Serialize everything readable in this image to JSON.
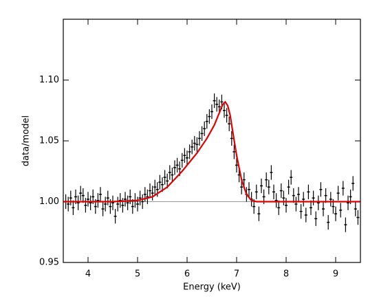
{
  "chart_data": {
    "type": "scatter",
    "xlabel": "Energy (keV)",
    "ylabel": "data/model",
    "xlim": [
      3.5,
      9.5
    ],
    "ylim": [
      0.95,
      1.15
    ],
    "xticks": [
      4,
      5,
      6,
      7,
      8,
      9
    ],
    "yticks": [
      0.95,
      {
        "value": 1,
        "label": "1.00"
      },
      1.05,
      {
        "value": 1.1,
        "label": "1.10"
      }
    ],
    "reference_y": 1,
    "series": [
      {
        "type": "errorbar",
        "color": "#000000",
        "error": 0.006,
        "x": [
          3.55,
          3.6,
          3.65,
          3.7,
          3.75,
          3.8,
          3.85,
          3.9,
          3.95,
          4.0,
          4.05,
          4.1,
          4.15,
          4.2,
          4.25,
          4.3,
          4.35,
          4.4,
          4.45,
          4.5,
          4.55,
          4.6,
          4.65,
          4.7,
          4.75,
          4.8,
          4.85,
          4.9,
          4.95,
          5.0,
          5.05,
          5.1,
          5.15,
          5.2,
          5.25,
          5.3,
          5.35,
          5.4,
          5.45,
          5.5,
          5.55,
          5.6,
          5.65,
          5.7,
          5.75,
          5.8,
          5.85,
          5.9,
          5.95,
          6.0,
          6.05,
          6.1,
          6.15,
          6.2,
          6.25,
          6.3,
          6.35,
          6.4,
          6.45,
          6.5,
          6.55,
          6.6,
          6.65,
          6.7,
          6.75,
          6.8,
          6.85,
          6.9,
          6.95,
          7.0,
          7.05,
          7.1,
          7.15,
          7.2,
          7.25,
          7.3,
          7.35,
          7.4,
          7.45,
          7.5,
          7.55,
          7.6,
          7.65,
          7.7,
          7.75,
          7.8,
          7.85,
          7.9,
          7.95,
          8.0,
          8.05,
          8.1,
          8.15,
          8.2,
          8.25,
          8.3,
          8.35,
          8.4,
          8.45,
          8.5,
          8.55,
          8.6,
          8.65,
          8.7,
          8.75,
          8.8,
          8.85,
          8.9,
          8.95,
          9.0,
          9.05,
          9.1,
          9.15,
          9.2,
          9.25,
          9.3,
          9.35,
          9.4,
          9.45
        ],
        "values": [
          1.0,
          0.998,
          1.003,
          0.995,
          1.004,
          0.999,
          1.007,
          1.005,
          0.997,
          1.002,
          0.999,
          1.004,
          0.996,
          1.001,
          1.006,
          0.994,
          0.998,
          1.003,
          0.996,
          0.999,
          0.988,
          0.998,
          1.001,
          0.997,
          1.002,
          0.999,
          1.004,
          0.996,
          1.001,
          0.998,
          1.003,
          1.0,
          1.006,
          1.004,
          1.009,
          1.007,
          1.012,
          1.01,
          1.016,
          1.014,
          1.02,
          1.017,
          1.024,
          1.022,
          1.028,
          1.03,
          1.027,
          1.034,
          1.038,
          1.036,
          1.041,
          1.045,
          1.048,
          1.047,
          1.052,
          1.056,
          1.06,
          1.066,
          1.07,
          1.074,
          1.083,
          1.08,
          1.078,
          1.082,
          1.075,
          1.071,
          1.064,
          1.052,
          1.041,
          1.03,
          1.022,
          1.012,
          1.018,
          1.006,
          1.01,
          1.002,
          0.996,
          1.008,
          0.99,
          1.013,
          1.004,
          1.018,
          1.012,
          1.024,
          1.008,
          1.001,
          0.995,
          1.009,
          1.003,
          0.997,
          1.012,
          1.02,
          1.005,
          0.998,
          1.006,
          0.992,
          1.002,
          0.989,
          1.008,
          0.995,
          1.003,
          0.986,
          0.999,
          1.01,
          0.994,
          1.005,
          0.983,
          1.002,
          0.996,
          0.99,
          1.007,
          0.993,
          1.011,
          0.981,
          0.999,
          1.004,
          1.015,
          0.994,
          0.987
        ]
      },
      {
        "type": "line",
        "color": "#e00000",
        "x": [
          3.5,
          4.5,
          5.0,
          5.3,
          5.6,
          5.9,
          6.2,
          6.4,
          6.55,
          6.65,
          6.72,
          6.77,
          6.82,
          6.87,
          6.92,
          7.0,
          7.1,
          7.2,
          7.3,
          7.4,
          9.5
        ],
        "values": [
          1.0,
          1.0,
          1.001,
          1.004,
          1.012,
          1.025,
          1.04,
          1.052,
          1.063,
          1.073,
          1.08,
          1.082,
          1.079,
          1.071,
          1.058,
          1.038,
          1.018,
          1.006,
          1.001,
          1.0,
          1.0
        ]
      }
    ]
  }
}
